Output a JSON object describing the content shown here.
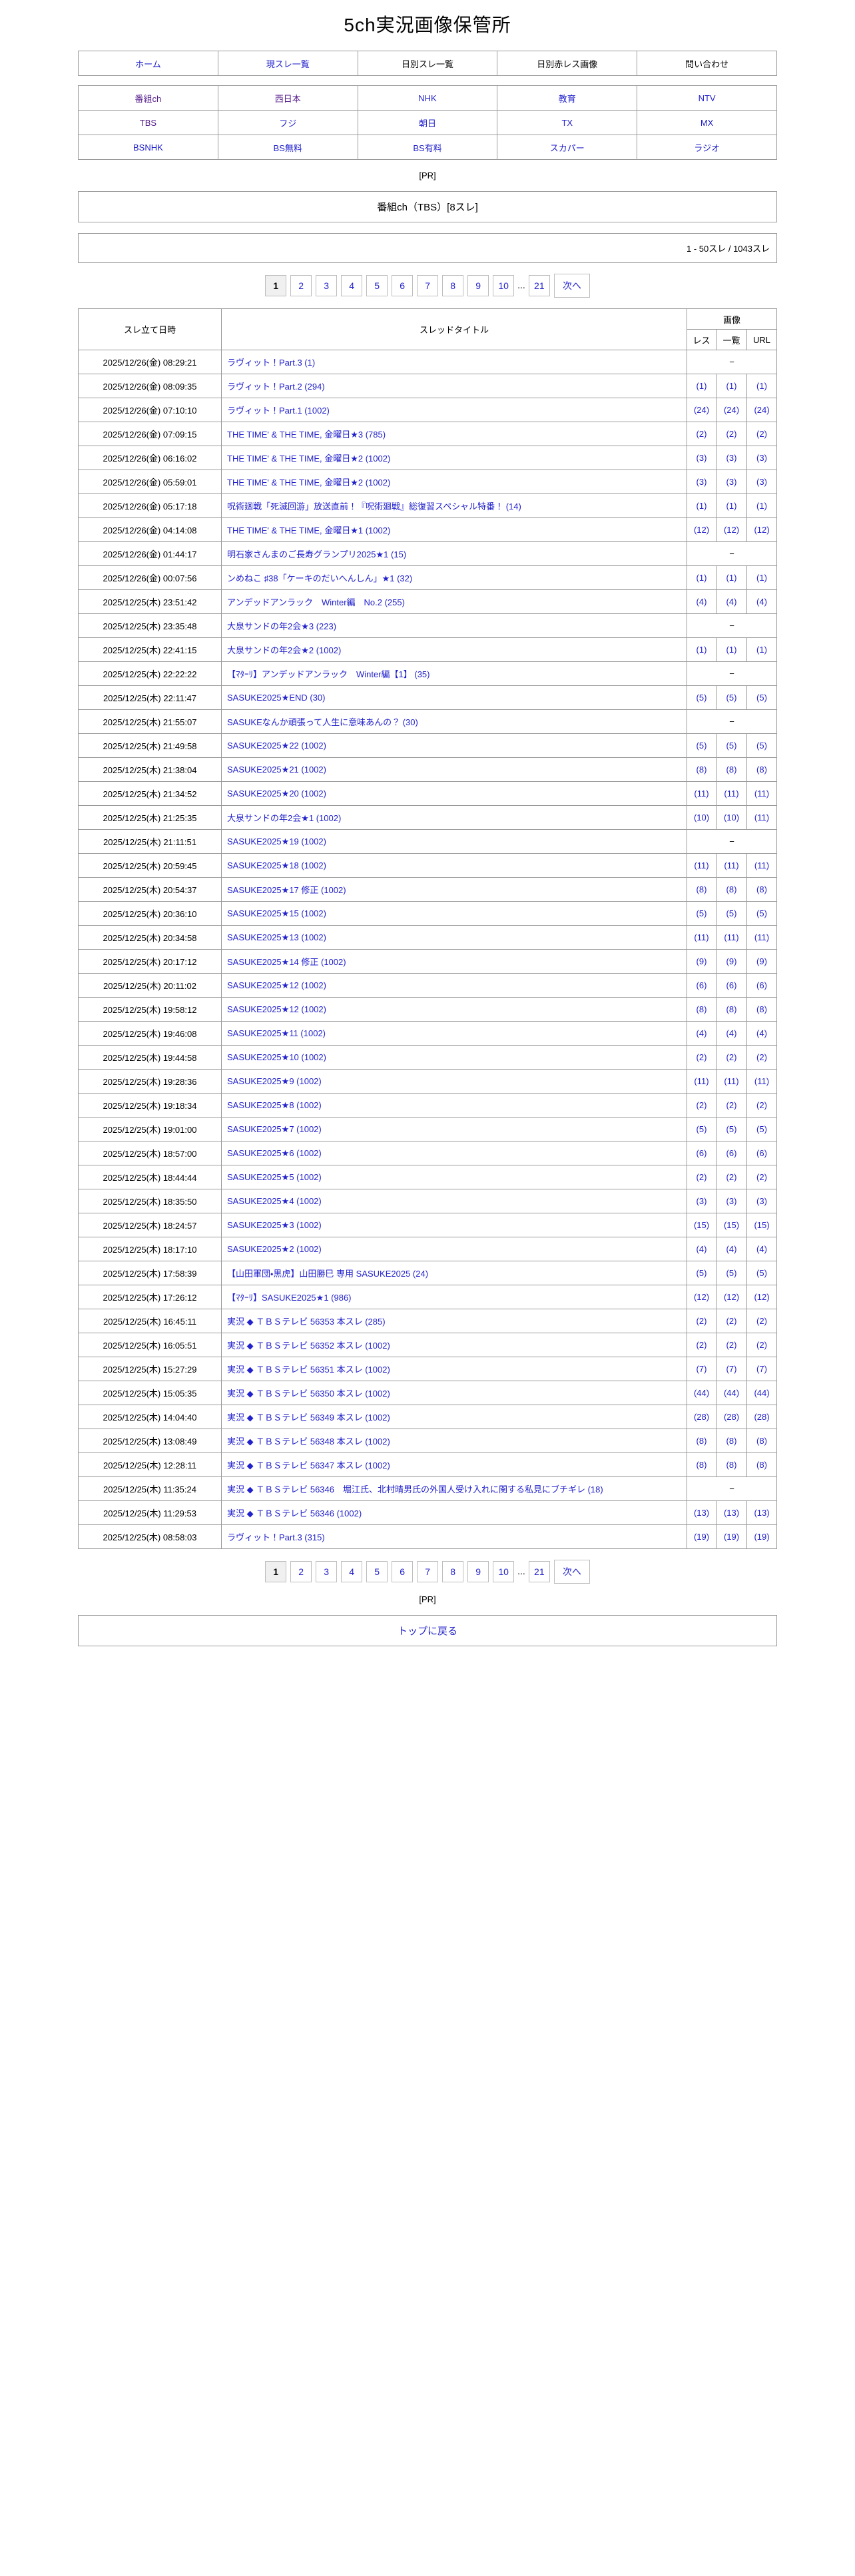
{
  "page": {
    "title": "5ch実況画像保管所",
    "pr_label": "[PR]",
    "board_title": "番組ch（TBS）[8スレ]",
    "count_label": "1 - 50スレ / 1043スレ",
    "back_to_top": "トップに戻る"
  },
  "nav": {
    "items": [
      {
        "label": "ホーム",
        "style": "link"
      },
      {
        "label": "現スレ一覧",
        "style": "link"
      },
      {
        "label": "日別スレ一覧",
        "style": "plain"
      },
      {
        "label": "日別赤レス画像",
        "style": "plain"
      },
      {
        "label": "問い合わせ",
        "style": "plain"
      }
    ]
  },
  "channels": {
    "rows": [
      [
        {
          "label": "番組ch",
          "style": "visited"
        },
        {
          "label": "西日本",
          "style": "visited"
        },
        {
          "label": "NHK",
          "style": "link"
        },
        {
          "label": "教育",
          "style": "link"
        },
        {
          "label": "NTV",
          "style": "link"
        }
      ],
      [
        {
          "label": "TBS",
          "style": "visited"
        },
        {
          "label": "フジ",
          "style": "link"
        },
        {
          "label": "朝日",
          "style": "link"
        },
        {
          "label": "TX",
          "style": "link"
        },
        {
          "label": "MX",
          "style": "link"
        }
      ],
      [
        {
          "label": "BSNHK",
          "style": "link"
        },
        {
          "label": "BS無料",
          "style": "link"
        },
        {
          "label": "BS有料",
          "style": "link"
        },
        {
          "label": "スカパー",
          "style": "link"
        },
        {
          "label": "ラジオ",
          "style": "link"
        }
      ]
    ]
  },
  "pagination": {
    "current": "1",
    "pages": [
      "2",
      "3",
      "4",
      "5",
      "6",
      "7",
      "8",
      "9",
      "10"
    ],
    "ellipsis": "...",
    "last": "21",
    "next": "次へ"
  },
  "table": {
    "headers": {
      "date": "スレ立て日時",
      "title": "スレッドタイトル",
      "images": "画像",
      "res": "レス",
      "list": "一覧",
      "url": "URL"
    },
    "no_image": "−",
    "rows": [
      {
        "date": "2025/12/26(金) 08:29:21",
        "title": "ラヴィット！Part.3 (1)",
        "bg": "yellow",
        "res": null,
        "list": null,
        "url": null
      },
      {
        "date": "2025/12/26(金) 08:09:35",
        "title": "ラヴィット！Part.2 (294)",
        "bg": "yellow",
        "res": "(1)",
        "list": "(1)",
        "url": "(1)"
      },
      {
        "date": "2025/12/26(金) 07:10:10",
        "title": "ラヴィット！Part.1 (1002)",
        "bg": "lavender",
        "res": "(24)",
        "list": "(24)",
        "url": "(24)"
      },
      {
        "date": "2025/12/26(金) 07:09:15",
        "title": "THE TIME' & THE TIME, 金曜日★3 (785)",
        "bg": "yellow",
        "res": "(2)",
        "list": "(2)",
        "url": "(2)"
      },
      {
        "date": "2025/12/26(金) 06:16:02",
        "title": "THE TIME' & THE TIME, 金曜日★2 (1002)",
        "bg": "lavender",
        "res": "(3)",
        "list": "(3)",
        "url": "(3)"
      },
      {
        "date": "2025/12/26(金) 05:59:01",
        "title": "THE TIME' & THE TIME, 金曜日★2 (1002)",
        "bg": "white",
        "res": "(3)",
        "list": "(3)",
        "url": "(3)"
      },
      {
        "date": "2025/12/26(金) 05:17:18",
        "title": "呪術廻戦「死滅回游」放送直前！『呪術廻戦』総復習スペシャル特番！ (14)",
        "bg": "yellow",
        "res": "(1)",
        "list": "(1)",
        "url": "(1)"
      },
      {
        "date": "2025/12/26(金) 04:14:08",
        "title": "THE TIME' & THE TIME, 金曜日★1 (1002)",
        "bg": "white",
        "res": "(12)",
        "list": "(12)",
        "url": "(12)"
      },
      {
        "date": "2025/12/26(金) 01:44:17",
        "title": "明石家さんまのご長寿グランプリ2025★1 (15)",
        "bg": "yellow",
        "res": null,
        "list": null,
        "url": null
      },
      {
        "date": "2025/12/26(金) 00:07:56",
        "title": "ンめねこ ♯38「ケーキのだいへんしん」★1 (32)",
        "bg": "white",
        "res": "(1)",
        "list": "(1)",
        "url": "(1)"
      },
      {
        "date": "2025/12/25(木) 23:51:42",
        "title": "アンデッドアンラック　Winter編　No.2 (255)",
        "bg": "white",
        "res": "(4)",
        "list": "(4)",
        "url": "(4)"
      },
      {
        "date": "2025/12/25(木) 23:35:48",
        "title": "大泉サンドの年2会★3 (223)",
        "bg": "white",
        "res": null,
        "list": null,
        "url": null
      },
      {
        "date": "2025/12/25(木) 22:41:15",
        "title": "大泉サンドの年2会★2 (1002)",
        "bg": "white",
        "res": "(1)",
        "list": "(1)",
        "url": "(1)"
      },
      {
        "date": "2025/12/25(木) 22:22:22",
        "title": "【ﾏﾀｰﾘ】アンデッドアンラック　Winter編【1】 (35)",
        "bg": "white",
        "res": null,
        "list": null,
        "url": null
      },
      {
        "date": "2025/12/25(木) 22:11:47",
        "title": "SASUKE2025★END (30)",
        "bg": "white",
        "res": "(5)",
        "list": "(5)",
        "url": "(5)"
      },
      {
        "date": "2025/12/25(木) 21:55:07",
        "title": "SASUKEなんか頑張って人生に意味あんの？ (30)",
        "bg": "white",
        "res": null,
        "list": null,
        "url": null
      },
      {
        "date": "2025/12/25(木) 21:49:58",
        "title": "SASUKE2025★22 (1002)",
        "bg": "white",
        "res": "(5)",
        "list": "(5)",
        "url": "(5)"
      },
      {
        "date": "2025/12/25(木) 21:38:04",
        "title": "SASUKE2025★21 (1002)",
        "bg": "white",
        "res": "(8)",
        "list": "(8)",
        "url": "(8)"
      },
      {
        "date": "2025/12/25(木) 21:34:52",
        "title": "SASUKE2025★20 (1002)",
        "bg": "white",
        "res": "(11)",
        "list": "(11)",
        "url": "(11)"
      },
      {
        "date": "2025/12/25(木) 21:25:35",
        "title": "大泉サンドの年2会★1 (1002)",
        "bg": "white",
        "res": "(10)",
        "list": "(10)",
        "url": "(11)"
      },
      {
        "date": "2025/12/25(木) 21:11:51",
        "title": "SASUKE2025★19 (1002)",
        "bg": "white",
        "res": null,
        "list": null,
        "url": null
      },
      {
        "date": "2025/12/25(木) 20:59:45",
        "title": "SASUKE2025★18 (1002)",
        "bg": "white",
        "res": "(11)",
        "list": "(11)",
        "url": "(11)"
      },
      {
        "date": "2025/12/25(木) 20:54:37",
        "title": "SASUKE2025★17 修正 (1002)",
        "bg": "white",
        "res": "(8)",
        "list": "(8)",
        "url": "(8)"
      },
      {
        "date": "2025/12/25(木) 20:36:10",
        "title": "SASUKE2025★15 (1002)",
        "bg": "white",
        "res": "(5)",
        "list": "(5)",
        "url": "(5)"
      },
      {
        "date": "2025/12/25(木) 20:34:58",
        "title": "SASUKE2025★13 (1002)",
        "bg": "white",
        "res": "(11)",
        "list": "(11)",
        "url": "(11)"
      },
      {
        "date": "2025/12/25(木) 20:17:12",
        "title": "SASUKE2025★14 修正 (1002)",
        "bg": "white",
        "res": "(9)",
        "list": "(9)",
        "url": "(9)"
      },
      {
        "date": "2025/12/25(木) 20:11:02",
        "title": "SASUKE2025★12 (1002)",
        "bg": "white",
        "res": "(6)",
        "list": "(6)",
        "url": "(6)"
      },
      {
        "date": "2025/12/25(木) 19:58:12",
        "title": "SASUKE2025★12 (1002)",
        "bg": "white",
        "res": "(8)",
        "list": "(8)",
        "url": "(8)"
      },
      {
        "date": "2025/12/25(木) 19:46:08",
        "title": "SASUKE2025★11 (1002)",
        "bg": "white",
        "res": "(4)",
        "list": "(4)",
        "url": "(4)"
      },
      {
        "date": "2025/12/25(木) 19:44:58",
        "title": "SASUKE2025★10 (1002)",
        "bg": "white",
        "res": "(2)",
        "list": "(2)",
        "url": "(2)"
      },
      {
        "date": "2025/12/25(木) 19:28:36",
        "title": "SASUKE2025★9 (1002)",
        "bg": "white",
        "res": "(11)",
        "list": "(11)",
        "url": "(11)"
      },
      {
        "date": "2025/12/25(木) 19:18:34",
        "title": "SASUKE2025★8 (1002)",
        "bg": "white",
        "res": "(2)",
        "list": "(2)",
        "url": "(2)"
      },
      {
        "date": "2025/12/25(木) 19:01:00",
        "title": "SASUKE2025★7 (1002)",
        "bg": "white",
        "res": "(5)",
        "list": "(5)",
        "url": "(5)"
      },
      {
        "date": "2025/12/25(木) 18:57:00",
        "title": "SASUKE2025★6 (1002)",
        "bg": "white",
        "res": "(6)",
        "list": "(6)",
        "url": "(6)"
      },
      {
        "date": "2025/12/25(木) 18:44:44",
        "title": "SASUKE2025★5 (1002)",
        "bg": "white",
        "res": "(2)",
        "list": "(2)",
        "url": "(2)"
      },
      {
        "date": "2025/12/25(木) 18:35:50",
        "title": "SASUKE2025★4 (1002)",
        "bg": "white",
        "res": "(3)",
        "list": "(3)",
        "url": "(3)"
      },
      {
        "date": "2025/12/25(木) 18:24:57",
        "title": "SASUKE2025★3 (1002)",
        "bg": "white",
        "res": "(15)",
        "list": "(15)",
        "url": "(15)"
      },
      {
        "date": "2025/12/25(木) 18:17:10",
        "title": "SASUKE2025★2 (1002)",
        "bg": "white",
        "res": "(4)",
        "list": "(4)",
        "url": "(4)"
      },
      {
        "date": "2025/12/25(木) 17:58:39",
        "title": "【山田軍団・黒虎】山田勝巳 専用 SASUKE2025 (24)",
        "bg": "white",
        "res": "(5)",
        "list": "(5)",
        "url": "(5)"
      },
      {
        "date": "2025/12/25(木) 17:26:12",
        "title": "【ﾏﾀｰﾘ】SASUKE2025★1 (986)",
        "bg": "white",
        "res": "(12)",
        "list": "(12)",
        "url": "(12)"
      },
      {
        "date": "2025/12/25(木) 16:45:11",
        "title": "実況 ◆ ＴＢＳテレビ 56353 本スレ (285)",
        "bg": "yellow",
        "res": "(2)",
        "list": "(2)",
        "url": "(2)"
      },
      {
        "date": "2025/12/25(木) 16:05:51",
        "title": "実況 ◆ ＴＢＳテレビ 56352 本スレ (1002)",
        "bg": "white",
        "res": "(2)",
        "list": "(2)",
        "url": "(2)"
      },
      {
        "date": "2025/12/25(木) 15:27:29",
        "title": "実況 ◆ ＴＢＳテレビ 56351 本スレ (1002)",
        "bg": "white",
        "res": "(7)",
        "list": "(7)",
        "url": "(7)"
      },
      {
        "date": "2025/12/25(木) 15:05:35",
        "title": "実況 ◆ ＴＢＳテレビ 56350 本スレ (1002)",
        "bg": "white",
        "res": "(44)",
        "list": "(44)",
        "url": "(44)"
      },
      {
        "date": "2025/12/25(木) 14:04:40",
        "title": "実況 ◆ ＴＢＳテレビ 56349 本スレ (1002)",
        "bg": "white",
        "res": "(28)",
        "list": "(28)",
        "url": "(28)"
      },
      {
        "date": "2025/12/25(木) 13:08:49",
        "title": "実況 ◆ ＴＢＳテレビ 56348 本スレ (1002)",
        "bg": "white",
        "res": "(8)",
        "list": "(8)",
        "url": "(8)"
      },
      {
        "date": "2025/12/25(木) 12:28:11",
        "title": "実況 ◆ ＴＢＳテレビ 56347 本スレ (1002)",
        "bg": "white",
        "res": "(8)",
        "list": "(8)",
        "url": "(8)"
      },
      {
        "date": "2025/12/25(木) 11:35:24",
        "title": "実況 ◆ ＴＢＳテレビ 56346　堀江氏、北村晴男氏の外国人受け入れに関する私見にブチギレ (18)",
        "bg": "white",
        "res": null,
        "list": null,
        "url": null
      },
      {
        "date": "2025/12/25(木) 11:29:53",
        "title": "実況 ◆ ＴＢＳテレビ 56346 (1002)",
        "bg": "white",
        "res": "(13)",
        "list": "(13)",
        "url": "(13)"
      },
      {
        "date": "2025/12/25(木) 08:58:03",
        "title": "ラヴィット！Part.3 (315)",
        "bg": "white",
        "res": "(19)",
        "list": "(19)",
        "url": "(19)"
      }
    ]
  },
  "colors": {
    "link": "#2222cc",
    "visited": "#541b8b",
    "row_highlight_yellow": "#ffffcc",
    "row_highlight_lavender": "#e0e0f5",
    "border": "#9a9a9a",
    "current_page_bg": "#f0f0f0"
  }
}
